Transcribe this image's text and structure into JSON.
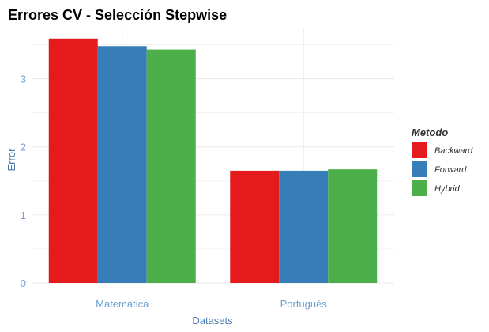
{
  "chart_data": {
    "type": "bar",
    "title": "Errores CV - Selección Stepwise",
    "xlabel": "Datasets",
    "ylabel": "Error",
    "categories": [
      "Matemática",
      "Portugués"
    ],
    "series": [
      {
        "name": "Backward",
        "color": "#E41A1C",
        "values": [
          3.59,
          1.65
        ]
      },
      {
        "name": "Forward",
        "color": "#377EB8",
        "values": [
          3.48,
          1.65
        ]
      },
      {
        "name": "Hybrid",
        "color": "#4DAF4A",
        "values": [
          3.43,
          1.67
        ]
      }
    ],
    "ylim": [
      0,
      3.6
    ],
    "yticks": [
      "0",
      "1",
      "2",
      "3"
    ],
    "grid": true,
    "legend": {
      "title": "Metodo",
      "position": "right"
    },
    "colors": {
      "tick_text": "#6E9FD4",
      "axis_text": "#4A78B0",
      "grid": "#EBEBEB"
    }
  }
}
